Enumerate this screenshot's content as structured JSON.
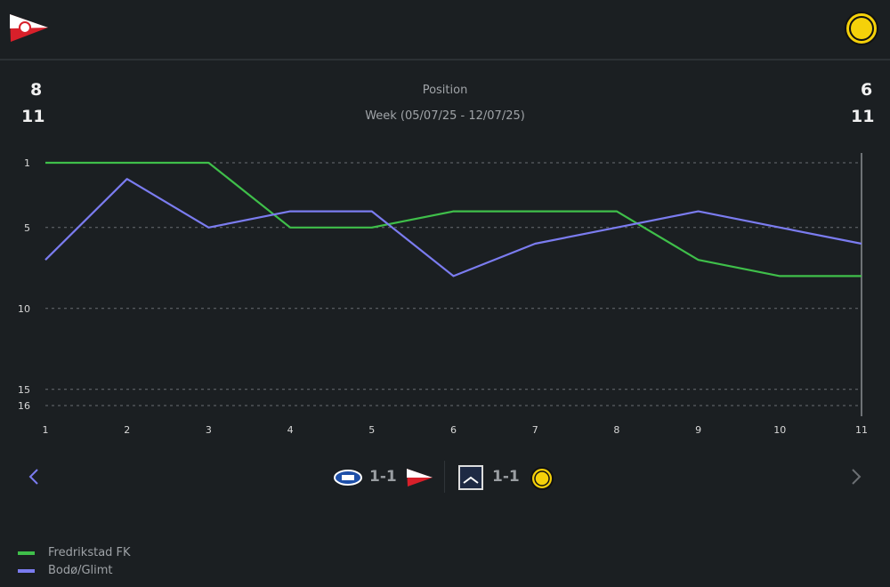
{
  "header": {
    "home_logo": "fredrikstad-crest",
    "away_logo": "bodo-glimt-crest"
  },
  "summary": {
    "home_position": "8",
    "home_week": "11",
    "away_position": "6",
    "away_week": "11",
    "title": "Position",
    "subtitle": "Week (05/07/25 - 12/07/25)"
  },
  "matches": [
    {
      "home": "valerenga-crest",
      "score": "1-1",
      "away": "fredrikstad-crest"
    },
    {
      "home": "kbk-crest",
      "score": "1-1",
      "away": "bodo-glimt-crest"
    }
  ],
  "nav": {
    "prev": "chevron-left-icon",
    "next": "chevron-right-icon"
  },
  "colors": {
    "home": "#3fbf4a",
    "away": "#7b7cf0"
  },
  "chart_data": {
    "type": "line",
    "title": "Position",
    "subtitle": "Week (05/07/25 - 12/07/25)",
    "x": [
      1,
      2,
      3,
      4,
      5,
      6,
      7,
      8,
      9,
      10,
      11
    ],
    "y_ticks": [
      1,
      5,
      10,
      15,
      16
    ],
    "ylim": [
      1,
      16
    ],
    "y_inverted": true,
    "grid": true,
    "legend_position": "bottom-left",
    "series": [
      {
        "name": "Fredrikstad FK",
        "color": "#3fbf4a",
        "values": [
          1,
          1,
          1,
          5,
          5,
          4,
          4,
          4,
          7,
          8,
          8
        ]
      },
      {
        "name": "Bodø/Glimt",
        "color": "#7b7cf0",
        "values": [
          7,
          2,
          5,
          4,
          4,
          8,
          6,
          5,
          4,
          5,
          6
        ]
      }
    ]
  }
}
